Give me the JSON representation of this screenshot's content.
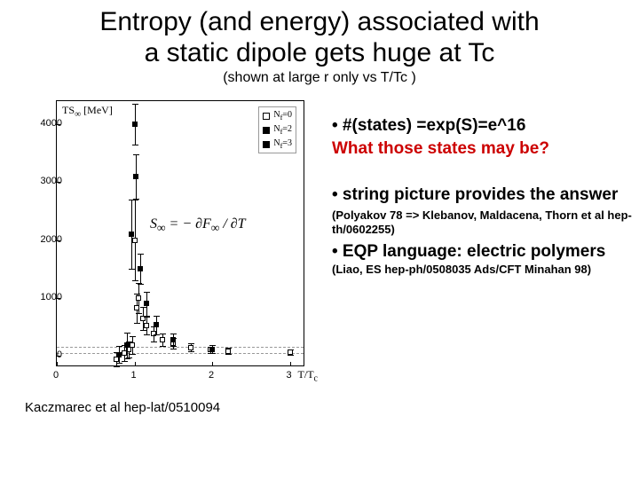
{
  "title": {
    "line1": "Entropy (and energy) associated with",
    "line2": "a static dipole gets huge at Tc"
  },
  "subtitle": "(shown at large r only vs T/Tc )",
  "chart": {
    "ylabel_html": "TS<sub>∞</sub> [MeV]",
    "xlabel_html": "T/T<sub>c</sub>",
    "xlim": [
      0,
      3.2
    ],
    "ylim": [
      -200,
      4400
    ],
    "yticks": [
      0,
      1000,
      2000,
      3000,
      4000
    ],
    "xticks": [
      0,
      1,
      2,
      3
    ],
    "legend": [
      {
        "label": "N_f=0",
        "style": "open"
      },
      {
        "label": "N_f=2",
        "style": "filled"
      },
      {
        "label": "N_f=3",
        "style": "filled"
      }
    ],
    "formula_html": "S<sub>∞</sub> = − ∂F<sub>∞</sub> / ∂T",
    "hlines_y": [
      50,
      150
    ],
    "series_open": {
      "x": [
        0.77,
        0.87,
        0.93,
        0.97,
        1.0,
        1.03,
        1.05,
        1.11,
        1.15,
        1.24,
        1.36,
        1.5,
        1.73,
        1.98,
        2.21,
        3.0
      ],
      "y": [
        -60,
        50,
        110,
        180,
        2000,
        820,
        1000,
        650,
        520,
        380,
        280,
        210,
        140,
        100,
        80,
        60
      ],
      "yerr": [
        120,
        140,
        140,
        150,
        700,
        250,
        260,
        200,
        160,
        130,
        110,
        90,
        70,
        60,
        50,
        40
      ]
    },
    "series_filled": {
      "x": [
        0.8,
        0.9,
        0.96,
        1.0,
        1.02,
        1.07,
        1.15,
        1.28,
        1.5,
        2.0
      ],
      "y": [
        20,
        180,
        2100,
        4000,
        3100,
        1500,
        900,
        530,
        280,
        110
      ],
      "yerr": [
        150,
        220,
        600,
        350,
        380,
        260,
        210,
        160,
        110,
        70
      ]
    },
    "colors": {
      "axis": "#000000",
      "grid": "#999999",
      "background": "#ffffff",
      "open_marker": "#ffffff",
      "filled_marker": "#000000"
    }
  },
  "citation": "Kaczmarec et al hep-lat/0510094",
  "bullets": {
    "b1": "• #(states) =exp(S)=e^16",
    "b1q": "What those states may be?",
    "b2": "• string picture provides the answer",
    "b2ref": "(Polyakov 78  =>                  Klebanov, Maldacena, Thorn et al    hep-th/0602255)",
    "b3a": "• EQP language: electric polymers",
    "b3ref": "(Liao, ES hep-ph/0508035 Ads/CFT Minahan 98)"
  }
}
